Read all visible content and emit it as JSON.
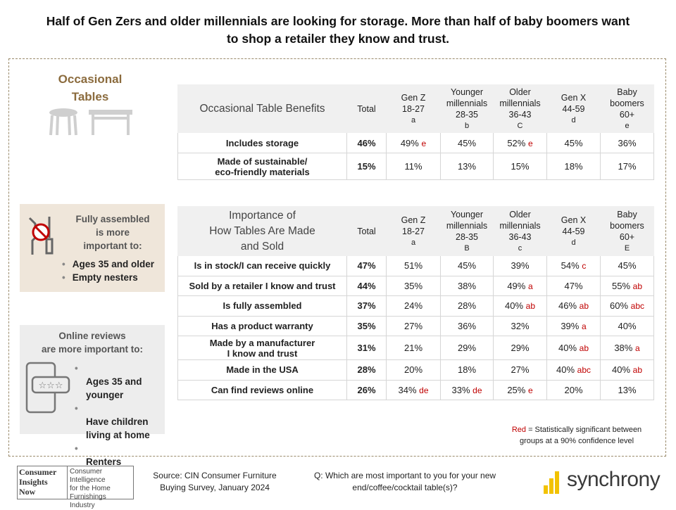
{
  "title": "Half of Gen Zers and older millennials are looking for storage. More than half of baby boomers want to shop a retailer they know and trust.",
  "category": [
    "Occasional",
    "Tables"
  ],
  "callout_assembled": {
    "title": [
      "Fully assembled",
      "is more",
      "important to:"
    ],
    "items": [
      "Ages 35 and older",
      "Empty nesters"
    ]
  },
  "callout_reviews": {
    "title": [
      "Online reviews",
      "are more important to:"
    ],
    "items": [
      [
        "Ages 35 and",
        "younger"
      ],
      [
        "Have children",
        "living at home"
      ],
      [
        "Renters"
      ]
    ]
  },
  "table1": {
    "title": [
      "Occasional Table Benefits"
    ],
    "columns": [
      {
        "label": [
          "Total"
        ]
      },
      {
        "label": [
          "Gen Z",
          "18-27"
        ],
        "letter": "a"
      },
      {
        "label": [
          "Younger",
          "millennials",
          "28-35"
        ],
        "letter": "b"
      },
      {
        "label": [
          "Older",
          "millennials",
          "36-43"
        ],
        "letter": "C"
      },
      {
        "label": [
          "Gen X",
          "44-59"
        ],
        "letter": "d"
      },
      {
        "label": [
          "Baby",
          "boomers",
          "60+"
        ],
        "letter": "e"
      }
    ],
    "rows": [
      {
        "label": [
          "Includes storage"
        ],
        "total": "46%",
        "values": [
          {
            "value": "49%",
            "sig": "e"
          },
          {
            "value": "45%"
          },
          {
            "value": "52%",
            "sig": "e"
          },
          {
            "value": "45%"
          },
          {
            "value": "36%"
          }
        ]
      },
      {
        "label": [
          "Made of sustainable/",
          "eco-friendly materials"
        ],
        "total": "15%",
        "values": [
          {
            "value": "11%"
          },
          {
            "value": "13%"
          },
          {
            "value": "15%"
          },
          {
            "value": "18%"
          },
          {
            "value": "17%"
          }
        ]
      }
    ]
  },
  "table2": {
    "title": [
      "Importance of",
      "How Tables Are Made",
      "and Sold"
    ],
    "columns": [
      {
        "label": [
          "Total"
        ]
      },
      {
        "label": [
          "Gen Z",
          "18-27"
        ],
        "letter": "a"
      },
      {
        "label": [
          "Younger",
          "millennials",
          "28-35"
        ],
        "letter": "B"
      },
      {
        "label": [
          "Older",
          "millennials",
          "36-43"
        ],
        "letter": "c"
      },
      {
        "label": [
          "Gen X",
          "44-59"
        ],
        "letter": "d"
      },
      {
        "label": [
          "Baby",
          "boomers",
          "60+"
        ],
        "letter": "E"
      }
    ],
    "rows": [
      {
        "label": [
          "Is in stock/I can receive quickly"
        ],
        "total": "47%",
        "values": [
          {
            "value": "51%"
          },
          {
            "value": "45%"
          },
          {
            "value": "39%"
          },
          {
            "value": "54%",
            "sig": "c"
          },
          {
            "value": "45%"
          }
        ]
      },
      {
        "label": [
          "Sold by a retailer I know and trust"
        ],
        "total": "44%",
        "values": [
          {
            "value": "35%"
          },
          {
            "value": "38%"
          },
          {
            "value": "49%",
            "sig": "a"
          },
          {
            "value": "47%"
          },
          {
            "value": "55%",
            "sig": "ab"
          }
        ]
      },
      {
        "label": [
          "Is fully assembled"
        ],
        "total": "37%",
        "values": [
          {
            "value": "24%"
          },
          {
            "value": "28%"
          },
          {
            "value": "40%",
            "sig": "ab"
          },
          {
            "value": "46%",
            "sig": "ab"
          },
          {
            "value": "60%",
            "sig": "abc"
          }
        ]
      },
      {
        "label": [
          "Has a product warranty"
        ],
        "total": "35%",
        "values": [
          {
            "value": "27%"
          },
          {
            "value": "36%"
          },
          {
            "value": "32%"
          },
          {
            "value": "39%",
            "sig": "a"
          },
          {
            "value": "40%"
          }
        ]
      },
      {
        "label": [
          "Made by a manufacturer",
          "I know and trust"
        ],
        "total": "31%",
        "values": [
          {
            "value": "21%"
          },
          {
            "value": "29%"
          },
          {
            "value": "29%"
          },
          {
            "value": "40%",
            "sig": "ab"
          },
          {
            "value": "38%",
            "sig": "a"
          }
        ]
      },
      {
        "label": [
          "Made in the USA"
        ],
        "total": "28%",
        "values": [
          {
            "value": "20%"
          },
          {
            "value": "18%"
          },
          {
            "value": "27%"
          },
          {
            "value": "40%",
            "sig": "abc"
          },
          {
            "value": "40%",
            "sig": "ab"
          }
        ]
      },
      {
        "label": [
          "Can find reviews online"
        ],
        "total": "26%",
        "values": [
          {
            "value": "34%",
            "sig": "de"
          },
          {
            "value": "33%",
            "sig": "de"
          },
          {
            "value": "25%",
            "sig": "e"
          },
          {
            "value": "20%"
          },
          {
            "value": "13%"
          }
        ]
      }
    ]
  },
  "note": {
    "key": "Red",
    "text": [
      "= Statistically significant between",
      "groups at a 90% confidence level"
    ]
  },
  "footer": {
    "logo": [
      "Consumer",
      "Insights",
      "Now"
    ],
    "logo_tagline": [
      "Consumer Intelligence",
      "for the Home",
      "Furnishings Industry"
    ],
    "source": [
      "Source: CIN Consumer Furniture",
      "Buying Survey, January 2024"
    ],
    "question": [
      "Q: Which are most important to you for your new",
      "end/coffee/cocktail table(s)?"
    ],
    "brand": "synchrony"
  }
}
